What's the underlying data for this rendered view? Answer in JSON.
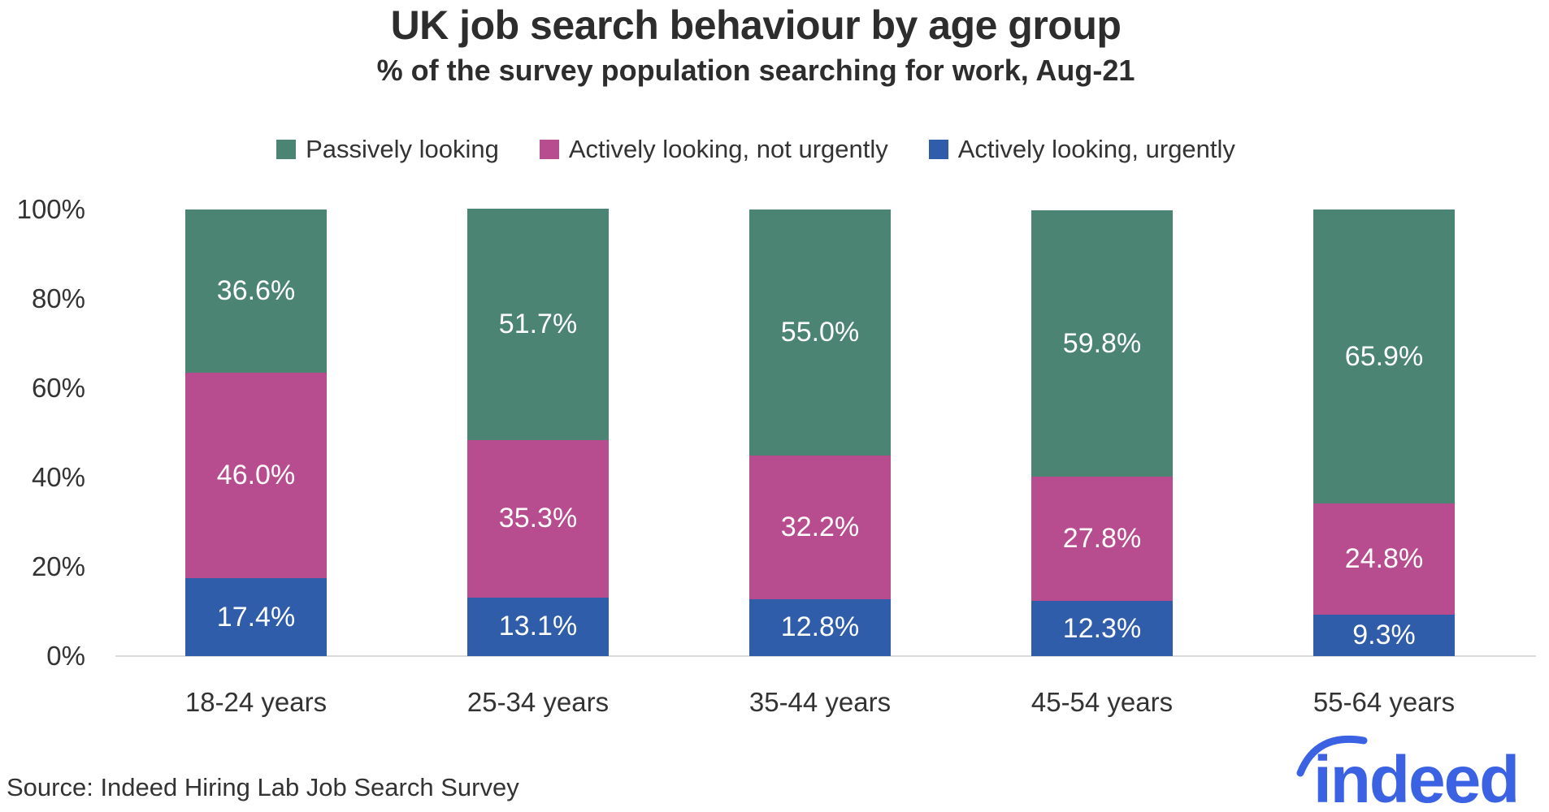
{
  "header": {
    "title": "UK job search behaviour by age group",
    "subtitle": "% of the survey population searching for work, Aug-21"
  },
  "chart_data": {
    "type": "bar",
    "stacked": true,
    "title": "UK job search behaviour by age group",
    "subtitle": "% of the survey population searching for work, Aug-21",
    "categories": [
      "18-24 years",
      "25-34 years",
      "35-44 years",
      "45-54 years",
      "55-64 years"
    ],
    "series": [
      {
        "name": "Passively looking",
        "color": "#4c8473",
        "values": [
          36.6,
          51.7,
          55.0,
          59.8,
          65.9
        ]
      },
      {
        "name": "Actively looking, not urgently",
        "color": "#b74c8e",
        "values": [
          46.0,
          35.3,
          32.2,
          27.8,
          24.8
        ]
      },
      {
        "name": "Actively looking, urgently",
        "color": "#2f5da9",
        "values": [
          17.4,
          13.1,
          12.8,
          12.3,
          9.3
        ]
      }
    ],
    "stack_order_bottom_to_top": [
      "Actively looking, urgently",
      "Actively looking, not urgently",
      "Passively looking"
    ],
    "xlabel": "",
    "ylabel": "",
    "ylim": [
      0,
      100
    ],
    "yticks": [
      "0%",
      "20%",
      "40%",
      "60%",
      "80%",
      "100%"
    ],
    "value_label_format": "{value}%",
    "legend_position": "top",
    "gridlines": false,
    "baseline_color": "#d9d9d9",
    "label_color": "#ffffff"
  },
  "footer": {
    "source": "Source: Indeed Hiring Lab Job Search Survey",
    "logo_text": "indeed",
    "logo_color": "#3b62e2"
  }
}
